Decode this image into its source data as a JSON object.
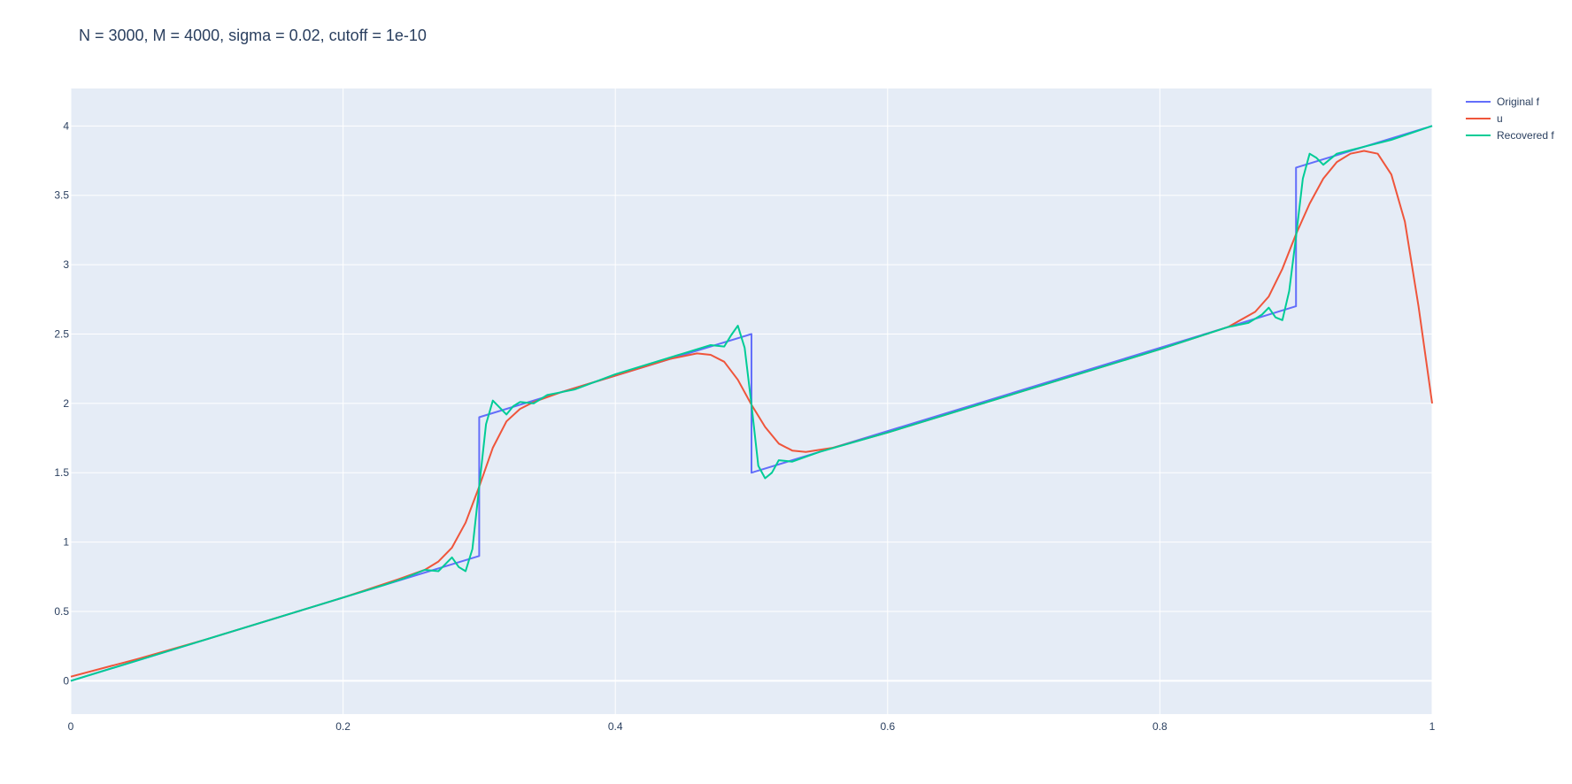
{
  "chart_data": {
    "type": "line",
    "title": "N = 3000, M = 4000, sigma = 0.02, cutoff = 1e-10",
    "xlabel": "",
    "ylabel": "",
    "xlim": [
      0,
      1
    ],
    "ylim": [
      -0.24,
      4.27
    ],
    "grid": true,
    "legend_position": "top-right",
    "x_ticks": [
      0,
      0.2,
      0.4,
      0.6,
      0.8,
      1
    ],
    "x_tick_labels": [
      "0",
      "0.2",
      "0.4",
      "0.6",
      "0.8",
      "1"
    ],
    "y_ticks": [
      0,
      0.5,
      1,
      1.5,
      2,
      2.5,
      3,
      3.5,
      4
    ],
    "y_tick_labels": [
      "0",
      "0.5",
      "1",
      "1.5",
      "2",
      "2.5",
      "3",
      "3.5",
      "4"
    ],
    "series": [
      {
        "name": "Original f",
        "color": "#636efa",
        "x": [
          0,
          0.3,
          0.3,
          0.5,
          0.5,
          0.9,
          0.9,
          1.0
        ],
        "y": [
          0,
          0.9,
          1.9,
          2.5,
          1.5,
          2.7,
          3.7,
          4.0
        ]
      },
      {
        "name": "u",
        "color": "#ef553b",
        "x": [
          0,
          0.05,
          0.1,
          0.15,
          0.2,
          0.24,
          0.26,
          0.27,
          0.28,
          0.29,
          0.3,
          0.31,
          0.32,
          0.33,
          0.34,
          0.36,
          0.4,
          0.44,
          0.46,
          0.47,
          0.48,
          0.49,
          0.5,
          0.51,
          0.52,
          0.53,
          0.54,
          0.56,
          0.6,
          0.7,
          0.8,
          0.85,
          0.87,
          0.88,
          0.89,
          0.9,
          0.91,
          0.92,
          0.93,
          0.94,
          0.95,
          0.96,
          0.97,
          0.98,
          0.99,
          1.0
        ],
        "y": [
          0.03,
          0.16,
          0.3,
          0.45,
          0.6,
          0.73,
          0.8,
          0.86,
          0.96,
          1.14,
          1.4,
          1.68,
          1.87,
          1.96,
          2.01,
          2.08,
          2.2,
          2.32,
          2.36,
          2.35,
          2.3,
          2.17,
          1.99,
          1.83,
          1.71,
          1.66,
          1.65,
          1.68,
          1.79,
          2.09,
          2.39,
          2.55,
          2.66,
          2.77,
          2.97,
          3.22,
          3.44,
          3.62,
          3.74,
          3.8,
          3.82,
          3.8,
          3.65,
          3.31,
          2.7,
          2.0
        ]
      },
      {
        "name": "Recovered f",
        "color": "#00cc96",
        "x": [
          0,
          0.05,
          0.1,
          0.15,
          0.2,
          0.23,
          0.245,
          0.26,
          0.27,
          0.275,
          0.28,
          0.285,
          0.29,
          0.295,
          0.3,
          0.305,
          0.31,
          0.315,
          0.32,
          0.325,
          0.33,
          0.34,
          0.35,
          0.37,
          0.4,
          0.43,
          0.45,
          0.46,
          0.47,
          0.48,
          0.485,
          0.49,
          0.495,
          0.5,
          0.505,
          0.51,
          0.515,
          0.52,
          0.53,
          0.55,
          0.6,
          0.7,
          0.8,
          0.85,
          0.865,
          0.875,
          0.88,
          0.885,
          0.89,
          0.895,
          0.9,
          0.905,
          0.91,
          0.915,
          0.92,
          0.93,
          0.95,
          0.97,
          1.0
        ],
        "y": [
          0,
          0.15,
          0.3,
          0.45,
          0.6,
          0.69,
          0.74,
          0.8,
          0.79,
          0.84,
          0.89,
          0.82,
          0.79,
          0.95,
          1.4,
          1.85,
          2.02,
          1.97,
          1.92,
          1.98,
          2.01,
          2.0,
          2.06,
          2.1,
          2.21,
          2.3,
          2.36,
          2.39,
          2.42,
          2.41,
          2.49,
          2.56,
          2.4,
          1.99,
          1.55,
          1.46,
          1.5,
          1.59,
          1.58,
          1.65,
          1.79,
          2.09,
          2.39,
          2.55,
          2.58,
          2.64,
          2.69,
          2.62,
          2.6,
          2.81,
          3.2,
          3.62,
          3.8,
          3.77,
          3.72,
          3.8,
          3.85,
          3.9,
          4.0
        ]
      }
    ]
  }
}
